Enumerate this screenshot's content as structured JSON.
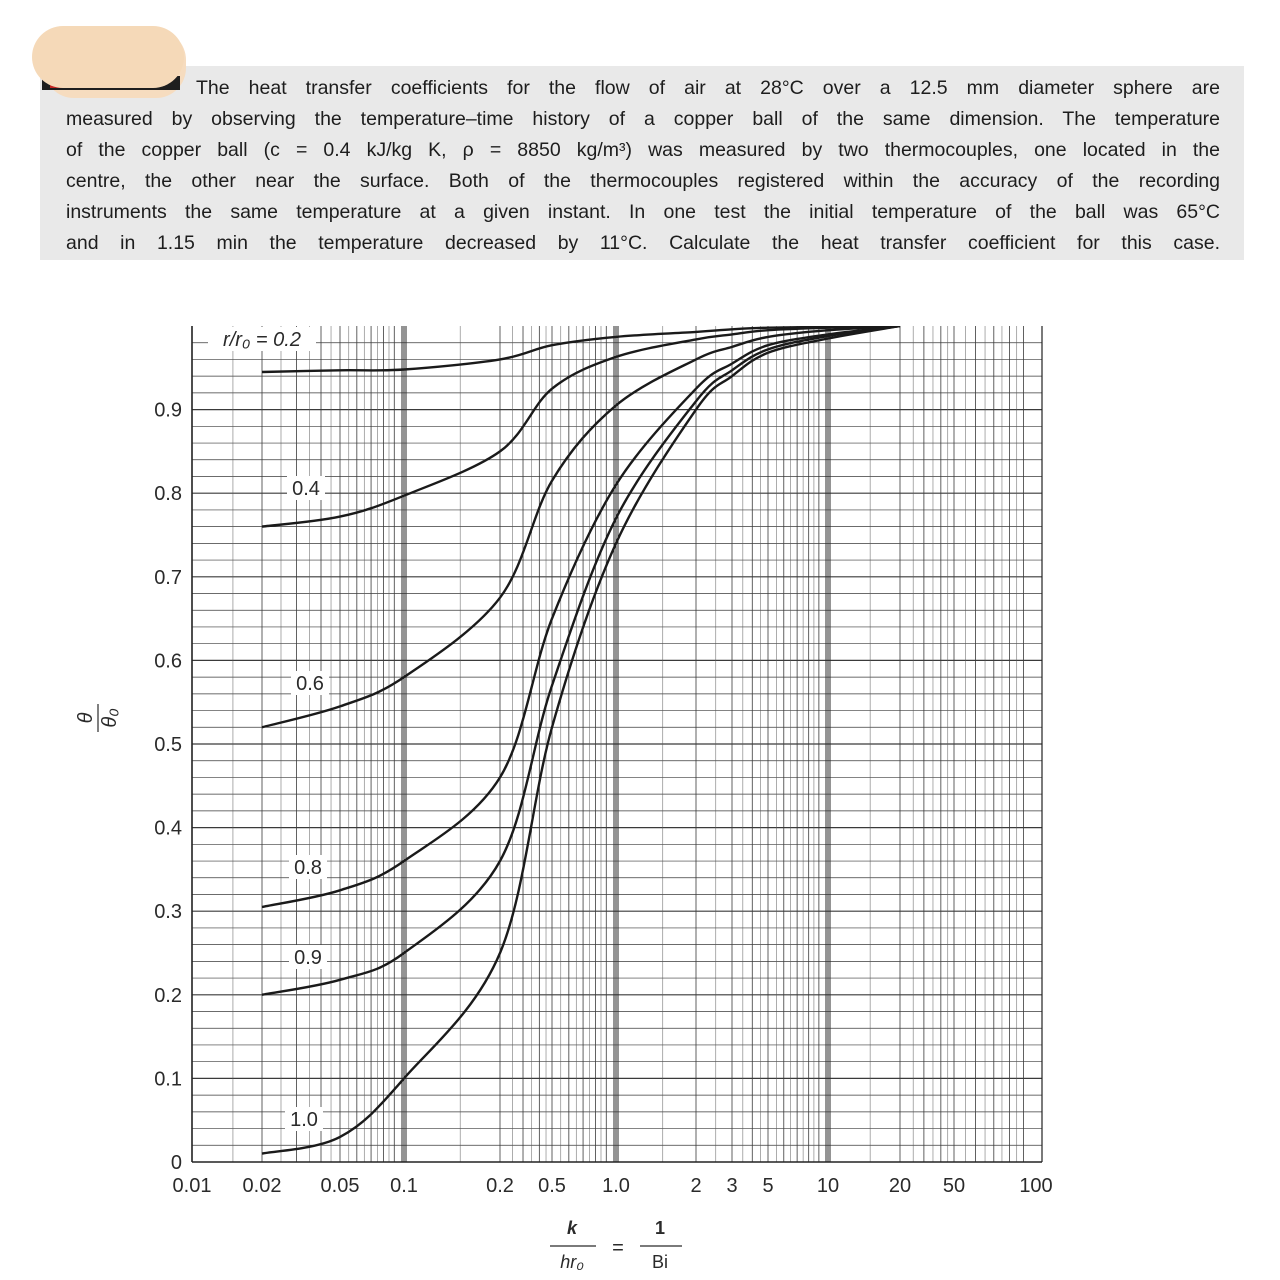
{
  "problem": {
    "lines": [
      "The heat transfer coefficients for the flow of air at 28°C over a 12.5 mm diameter sphere are",
      "measured by observing the temperature–time history of a copper ball of the same dimension. The temperature",
      "of the copper ball (c = 0.4 kJ/kg K, ρ = 8850 kg/m³) was measured by two thermocouples, one located in the",
      "centre, the other near the surface. Both of the thermocouples registered within the accuracy of the recording",
      "instruments  the same temperature at a given instant. In one test the initial temperature of the ball was 65°C",
      "and in 1.15 min the temperature decreased by 11°C. Calculate the heat transfer coefficient for this case."
    ]
  },
  "chart_data": {
    "type": "line",
    "ylabel_num": "θ",
    "ylabel_den": "θ₀",
    "xlabel": {
      "lhs_num": "k",
      "lhs_den": "hr₀",
      "eq": "=",
      "rhs_num": "1",
      "rhs_den": "Bi"
    },
    "ylim": [
      0,
      1.0
    ],
    "y_ticks": [
      "0",
      "0.1",
      "0.2",
      "0.3",
      "0.4",
      "0.5",
      "0.6",
      "0.7",
      "0.8",
      "0.9"
    ],
    "x_tick_labels": [
      "0.01",
      "0.02",
      "0.05",
      "0.1",
      "0.2",
      "0.5",
      "1.0",
      "2",
      "3",
      "5",
      "10",
      "20",
      "50",
      "100"
    ],
    "grid": true,
    "series_label_prefix": "r/r₀ = ",
    "series": [
      {
        "name": "0.2",
        "x": [
          0.02,
          0.05,
          0.1,
          0.2,
          0.5,
          1.0,
          2,
          3,
          5,
          10,
          20
        ],
        "y": [
          0.945,
          0.947,
          0.948,
          0.96,
          0.977,
          0.987,
          0.993,
          0.996,
          0.998,
          0.999,
          1.0
        ]
      },
      {
        "name": "0.4",
        "x": [
          0.02,
          0.05,
          0.1,
          0.2,
          0.5,
          1.0,
          2,
          3,
          5,
          10,
          20
        ],
        "y": [
          0.76,
          0.772,
          0.797,
          0.85,
          0.925,
          0.963,
          0.984,
          0.99,
          0.995,
          0.998,
          1.0
        ]
      },
      {
        "name": "0.6",
        "x": [
          0.02,
          0.05,
          0.1,
          0.2,
          0.5,
          1.0,
          2,
          3,
          5,
          10,
          20
        ],
        "y": [
          0.52,
          0.545,
          0.58,
          0.675,
          0.815,
          0.905,
          0.96,
          0.975,
          0.987,
          0.995,
          1.0
        ]
      },
      {
        "name": "0.8",
        "x": [
          0.02,
          0.05,
          0.1,
          0.2,
          0.5,
          1.0,
          2,
          3,
          5,
          10,
          20
        ],
        "y": [
          0.305,
          0.325,
          0.36,
          0.46,
          0.65,
          0.81,
          0.925,
          0.955,
          0.977,
          0.99,
          1.0
        ]
      },
      {
        "name": "0.9",
        "x": [
          0.02,
          0.05,
          0.1,
          0.2,
          0.5,
          1.0,
          2,
          3,
          5,
          10,
          20
        ],
        "y": [
          0.2,
          0.218,
          0.25,
          0.36,
          0.57,
          0.77,
          0.91,
          0.947,
          0.972,
          0.988,
          1.0
        ]
      },
      {
        "name": "1.0",
        "x": [
          0.02,
          0.05,
          0.1,
          0.2,
          0.5,
          1.0,
          2,
          3,
          5,
          10,
          20
        ],
        "y": [
          0.01,
          0.03,
          0.1,
          0.25,
          0.52,
          0.74,
          0.9,
          0.94,
          0.968,
          0.985,
          1.0
        ]
      }
    ]
  }
}
